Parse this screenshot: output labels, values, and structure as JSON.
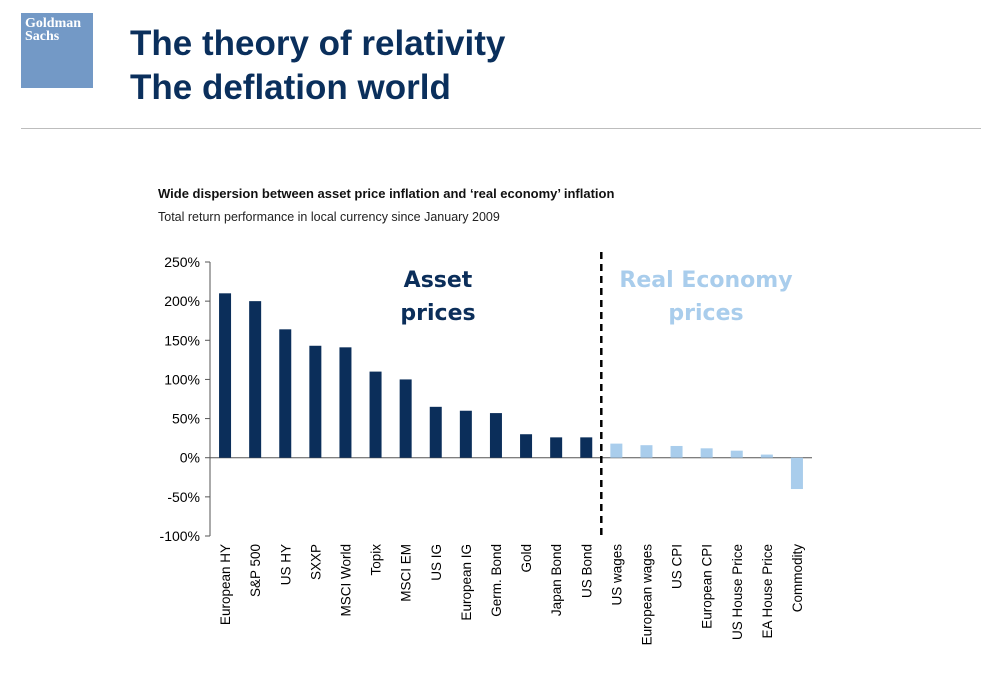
{
  "header": {
    "logo_line1": "Goldman",
    "logo_line2": "Sachs",
    "title_line1": "The theory of relativity",
    "title_line2": "The deflation world"
  },
  "chart_data": {
    "type": "bar",
    "title": "Wide dispersion between asset price inflation and ‘real economy’ inflation",
    "subtitle": "Total return performance in local currency since January 2009",
    "categories": [
      "European HY",
      "S&P 500",
      "US HY",
      "SXXP",
      "MSCI World",
      "Topix",
      "MSCI EM",
      "US IG",
      "European IG",
      "Germ. Bond",
      "Gold",
      "Japan Bond",
      "US Bond",
      "US wages",
      "European wages",
      "US CPI",
      "European CPI",
      "US House Price",
      "EA House Price",
      "Commodity"
    ],
    "values": [
      210,
      200,
      164,
      143,
      141,
      110,
      100,
      65,
      60,
      57,
      30,
      26,
      26,
      18,
      16,
      15,
      12,
      9,
      4,
      -40
    ],
    "groups": [
      {
        "name_line1": "Asset",
        "name_line2": "prices",
        "count": 13,
        "color": "#0b2e5a"
      },
      {
        "name_line1": "Real Economy",
        "name_line2": "prices",
        "count": 7,
        "color": "#a9cdec"
      }
    ],
    "ylim": [
      -100,
      250
    ],
    "yticks": [
      250,
      200,
      150,
      100,
      50,
      0,
      -50,
      -100
    ],
    "ytick_labels": [
      "250%",
      "200%",
      "150%",
      "100%",
      "50%",
      "0%",
      "-50%",
      "-100%"
    ],
    "divider": "dashed line between Asset prices and Real Economy prices",
    "grid": false
  }
}
